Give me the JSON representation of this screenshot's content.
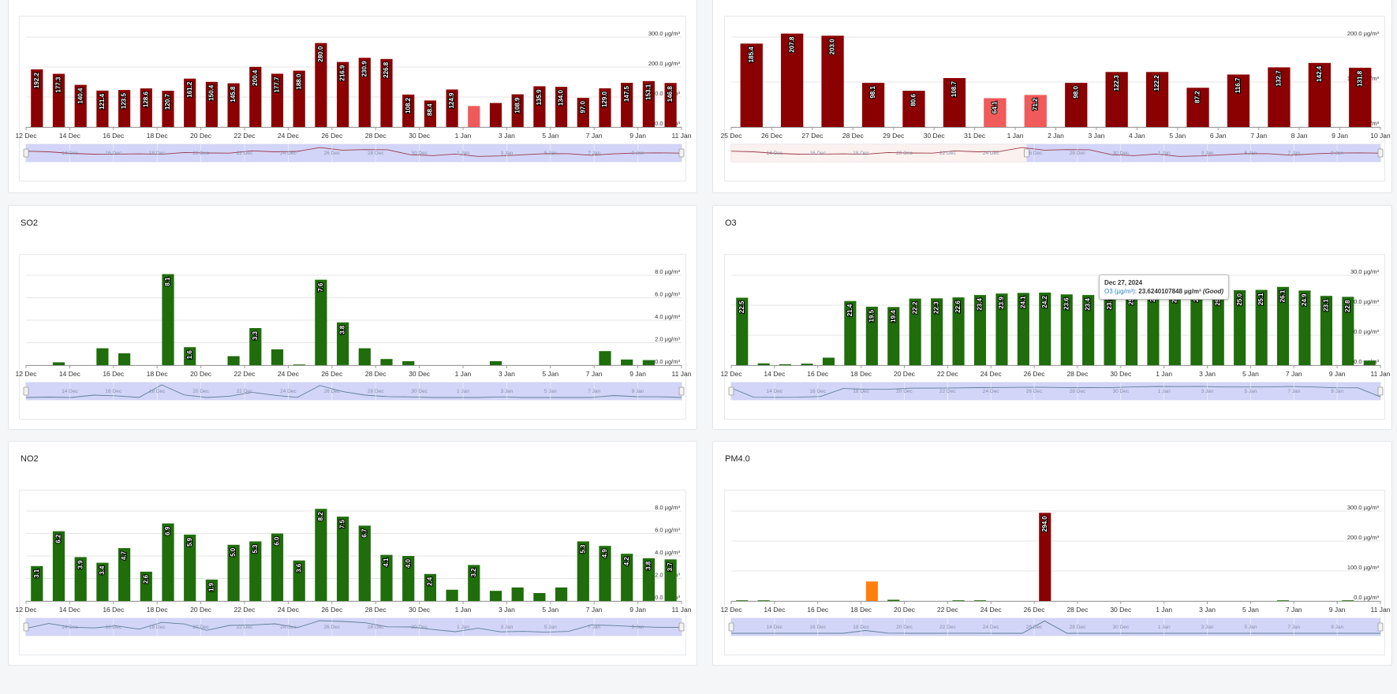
{
  "colors": {
    "dark_red": "#8b0000",
    "light_red": "#f05a5a",
    "green": "#1f6d0b",
    "orange": "#ff7f0e",
    "navigator_fill": "#cdd0f7",
    "navigator_mask": "#fbefec"
  },
  "panels": [
    {
      "id": "pm10",
      "title": "",
      "unit": "µg/m³",
      "y_ticks": [
        "300.0 µg/m³",
        "200.0 µg/m³",
        "100.0 µg/m³",
        "0.0 µg/m³"
      ],
      "ymax": 300,
      "x_labels": [
        "12 Dec",
        "14 Dec",
        "16 Dec",
        "18 Dec",
        "20 Dec",
        "22 Dec",
        "24 Dec",
        "26 Dec",
        "28 Dec",
        "30 Dec",
        "1 Jan",
        "3 Jan",
        "5 Jan",
        "7 Jan",
        "9 Jan",
        "11 Jan"
      ],
      "nav_labels": [
        "14 Dec",
        "16 Dec",
        "18 Dec",
        "20 Dec",
        "22 Dec",
        "24 Dec",
        "26 Dec",
        "28 Dec",
        "30 Dec",
        "1 Jan",
        "3 Jan",
        "5 Jan",
        "7 Jan",
        "9 Jan"
      ]
    },
    {
      "id": "pm25",
      "title": "",
      "unit": "µg/m³",
      "y_ticks": [
        "200.0 µg/m³",
        "100.0 µg/m³",
        "0.0 µg/m³"
      ],
      "ymax": 200,
      "x_labels": [
        "25 Dec",
        "26 Dec",
        "27 Dec",
        "28 Dec",
        "29 Dec",
        "30 Dec",
        "31 Dec",
        "1 Jan",
        "2 Jan",
        "3 Jan",
        "4 Jan",
        "5 Jan",
        "6 Jan",
        "7 Jan",
        "8 Jan",
        "9 Jan",
        "10 Jan"
      ],
      "nav_labels": [
        "14 Dec",
        "16 Dec",
        "18 Dec",
        "20 Dec",
        "22 Dec",
        "24 Dec",
        "26 Dec",
        "28 Dec",
        "30 Dec",
        "1 Jan",
        "3 Jan",
        "5 Jan",
        "7 Jan",
        "9 Jan"
      ]
    },
    {
      "id": "so2",
      "title": "SO2",
      "unit": "µg/m³",
      "y_ticks": [
        "8.0 µg/m³",
        "6.0 µg/m³",
        "4.0 µg/m³",
        "2.0 µg/m³",
        "0.0 µg/m³"
      ],
      "ymax": 8,
      "x_labels": [
        "12 Dec",
        "14 Dec",
        "16 Dec",
        "18 Dec",
        "20 Dec",
        "22 Dec",
        "24 Dec",
        "26 Dec",
        "28 Dec",
        "30 Dec",
        "1 Jan",
        "3 Jan",
        "5 Jan",
        "7 Jan",
        "9 Jan",
        "11 Jan"
      ],
      "nav_labels": [
        "14 Dec",
        "16 Dec",
        "18 Dec",
        "20 Dec",
        "22 Dec",
        "24 Dec",
        "26 Dec",
        "28 Dec",
        "30 Dec",
        "1 Jan",
        "3 Jan",
        "5 Jan",
        "7 Jan",
        "9 Jan"
      ]
    },
    {
      "id": "o3",
      "title": "O3",
      "unit": "µg/m³",
      "y_ticks": [
        "30.0 µg/m³",
        "20.0 µg/m³",
        "10.0 µg/m³",
        "0.0 µg/m³"
      ],
      "ymax": 30,
      "x_labels": [
        "12 Dec",
        "14 Dec",
        "16 Dec",
        "18 Dec",
        "20 Dec",
        "22 Dec",
        "24 Dec",
        "26 Dec",
        "28 Dec",
        "30 Dec",
        "1 Jan",
        "3 Jan",
        "5 Jan",
        "7 Jan",
        "9 Jan",
        "11 Jan"
      ],
      "nav_labels": [
        "14 Dec",
        "16 Dec",
        "18 Dec",
        "20 Dec",
        "22 Dec",
        "24 Dec",
        "26 Dec",
        "28 Dec",
        "30 Dec",
        "1 Jan",
        "3 Jan",
        "5 Jan",
        "7 Jan",
        "9 Jan"
      ]
    },
    {
      "id": "no2",
      "title": "NO2",
      "unit": "µg/m³",
      "y_ticks": [
        "8.0 µg/m³",
        "6.0 µg/m³",
        "4.0 µg/m³",
        "2.0 µg/m³",
        "0.0 µg/m³"
      ],
      "ymax": 8,
      "x_labels": [
        "12 Dec",
        "14 Dec",
        "16 Dec",
        "18 Dec",
        "20 Dec",
        "22 Dec",
        "24 Dec",
        "26 Dec",
        "28 Dec",
        "30 Dec",
        "1 Jan",
        "3 Jan",
        "5 Jan",
        "7 Jan",
        "9 Jan",
        "11 Jan"
      ],
      "nav_labels": [
        "14 Dec",
        "16 Dec",
        "18 Dec",
        "20 Dec",
        "22 Dec",
        "24 Dec",
        "26 Dec",
        "28 Dec",
        "30 Dec",
        "1 Jan",
        "3 Jan",
        "5 Jan",
        "7 Jan",
        "9 Jan"
      ]
    },
    {
      "id": "pm40",
      "title": "PM4.0",
      "unit": "µg/m³",
      "y_ticks": [
        "300.0 µg/m³",
        "200.0 µg/m³",
        "100.0 µg/m³",
        "0.0 µg/m³"
      ],
      "ymax": 300,
      "x_labels": [
        "12 Dec",
        "14 Dec",
        "16 Dec",
        "18 Dec",
        "20 Dec",
        "22 Dec",
        "24 Dec",
        "26 Dec",
        "28 Dec",
        "30 Dec",
        "1 Jan",
        "3 Jan",
        "5 Jan",
        "7 Jan",
        "9 Jan",
        "11 Jan"
      ],
      "nav_labels": [
        "14 Dec",
        "16 Dec",
        "18 Dec",
        "20 Dec",
        "22 Dec",
        "24 Dec",
        "26 Dec",
        "28 Dec",
        "30 Dec",
        "1 Jan",
        "3 Jan",
        "5 Jan",
        "7 Jan",
        "9 Jan"
      ]
    }
  ],
  "tooltip": {
    "date": "Dec 27, 2024",
    "series": "O3 (µg/m³)",
    "value": "23.6240107848 µg/m³",
    "status": "(Good)"
  },
  "chart_data": [
    {
      "type": "bar",
      "x_start": "2024-12-12",
      "ylim": [
        0,
        300
      ],
      "values": [
        192.2,
        177.3,
        140.4,
        121.4,
        123.5,
        128.6,
        120.7,
        161.2,
        150.4,
        145.8,
        200.4,
        177.7,
        188.0,
        280.0,
        216.9,
        230.9,
        226.8,
        108.2,
        88.4,
        124.9,
        70,
        80,
        108.9,
        135.9,
        134.0,
        97.0,
        129.0,
        147.5,
        153.1,
        146.8
      ],
      "labels": [
        "192.2",
        "177.3",
        "140.4",
        "121.4",
        "123.5",
        "128.6",
        "120.7",
        "161.2",
        "150.4",
        "145.8",
        "200.4",
        "177.7",
        "188.0",
        "280.0",
        "216.9",
        "230.9",
        "226.8",
        "108.2",
        "88.4",
        "124.9",
        "",
        "",
        "108.9",
        "135.9",
        "134.0",
        "97.0",
        "129.0",
        "147.5",
        "153.1",
        "146.8"
      ],
      "colors": [
        "dark_red",
        "dark_red",
        "dark_red",
        "dark_red",
        "dark_red",
        "dark_red",
        "dark_red",
        "dark_red",
        "dark_red",
        "dark_red",
        "dark_red",
        "dark_red",
        "dark_red",
        "dark_red",
        "dark_red",
        "dark_red",
        "dark_red",
        "dark_red",
        "dark_red",
        "dark_red",
        "light_red",
        "dark_red",
        "dark_red",
        "dark_red",
        "dark_red",
        "dark_red",
        "dark_red",
        "dark_red",
        "dark_red",
        "dark_red"
      ]
    },
    {
      "type": "bar",
      "x_start": "2024-12-26",
      "ylim": [
        0,
        200
      ],
      "values": [
        185.4,
        207.8,
        203.0,
        98.1,
        80.6,
        108.7,
        64.1,
        71.2,
        98.0,
        122.3,
        122.2,
        87.2,
        116.7,
        132.7,
        142.4,
        131.8
      ],
      "labels": [
        "185.4",
        "207.8",
        "203.0",
        "98.1",
        "80.6",
        "108.7",
        "64.1",
        "71.2",
        "98.0",
        "122.3",
        "122.2",
        "87.2",
        "116.7",
        "132.7",
        "142.4",
        "131.8"
      ],
      "colors": [
        "dark_red",
        "dark_red",
        "dark_red",
        "dark_red",
        "dark_red",
        "dark_red",
        "light_red",
        "light_red",
        "dark_red",
        "dark_red",
        "dark_red",
        "dark_red",
        "dark_red",
        "dark_red",
        "dark_red",
        "dark_red"
      ]
    },
    {
      "type": "bar",
      "x_start": "2024-12-12",
      "ylim": [
        0,
        8
      ],
      "values": [
        0,
        0.25,
        0,
        1.5,
        1.05,
        0,
        8.1,
        1.6,
        0,
        0.8,
        3.3,
        1.4,
        0.05,
        7.6,
        3.8,
        1.5,
        0.55,
        0.35,
        0,
        0,
        0,
        0.35,
        0,
        0,
        0,
        0,
        1.25,
        0.5,
        0.45,
        0
      ],
      "labels": [
        "",
        "",
        "",
        "",
        "",
        "",
        "8.1",
        "1.6",
        "",
        "",
        "3.3",
        "",
        "",
        "7.6",
        "3.8",
        "",
        "",
        "",
        "",
        "",
        "",
        "",
        "",
        "",
        "",
        "",
        "",
        "",
        "",
        ""
      ],
      "colors": [
        "green",
        "green",
        "green",
        "green",
        "green",
        "green",
        "green",
        "green",
        "green",
        "green",
        "green",
        "green",
        "green",
        "green",
        "green",
        "green",
        "green",
        "green",
        "green",
        "green",
        "green",
        "green",
        "green",
        "green",
        "green",
        "green",
        "green",
        "green",
        "green",
        "green"
      ]
    },
    {
      "type": "bar",
      "x_start": "2024-12-12",
      "ylim": [
        0,
        30
      ],
      "values": [
        22.5,
        0.6,
        0.3,
        0.5,
        2.5,
        21.4,
        19.5,
        19.4,
        22.2,
        22.3,
        22.6,
        23.4,
        23.9,
        24.1,
        24.2,
        23.6,
        23.4,
        23.7,
        25.2,
        26.2,
        25.9,
        26.2,
        25.0,
        25.0,
        25.1,
        26.1,
        24.9,
        23.1,
        22.8,
        1.5
      ],
      "labels": [
        "22.5",
        "",
        "",
        "",
        "",
        "21.4",
        "19.5",
        "19.4",
        "22.2",
        "22.3",
        "22.6",
        "23.4",
        "23.9",
        "24.1",
        "24.2",
        "23.6",
        "23.4",
        "23.7",
        "25.2",
        "26.2",
        "25.9",
        "26.2",
        "25.0",
        "25.0",
        "25.1",
        "26.1",
        "24.9",
        "23.1",
        "22.8",
        ""
      ],
      "colors": [
        "green",
        "green",
        "green",
        "green",
        "green",
        "green",
        "green",
        "green",
        "green",
        "green",
        "green",
        "green",
        "green",
        "green",
        "green",
        "green",
        "green",
        "green",
        "green",
        "green",
        "green",
        "green",
        "green",
        "green",
        "green",
        "green",
        "green",
        "green",
        "green",
        "green"
      ]
    },
    {
      "type": "bar",
      "x_start": "2024-12-12",
      "ylim": [
        0,
        8
      ],
      "values": [
        3.1,
        6.2,
        3.9,
        3.4,
        4.7,
        2.6,
        6.9,
        5.9,
        1.9,
        5.0,
        5.3,
        6.0,
        3.6,
        8.2,
        7.5,
        6.7,
        4.1,
        4.0,
        2.4,
        1.0,
        3.2,
        0.9,
        1.2,
        0.7,
        1.2,
        5.3,
        4.9,
        4.2,
        3.8,
        3.7
      ],
      "labels": [
        "3.1",
        "6.2",
        "3.9",
        "3.4",
        "4.7",
        "2.6",
        "6.9",
        "5.9",
        "1.9",
        "5.0",
        "5.3",
        "6.0",
        "3.6",
        "8.2",
        "7.5",
        "6.7",
        "4.1",
        "4.0",
        "2.4",
        "",
        "3.2",
        "",
        "",
        "",
        "",
        "5.3",
        "4.9",
        "4.2",
        "3.8",
        "3.7"
      ],
      "colors": [
        "green",
        "green",
        "green",
        "green",
        "green",
        "green",
        "green",
        "green",
        "green",
        "green",
        "green",
        "green",
        "green",
        "green",
        "green",
        "green",
        "green",
        "green",
        "green",
        "green",
        "green",
        "green",
        "green",
        "green",
        "green",
        "green",
        "green",
        "green",
        "green",
        "green"
      ]
    },
    {
      "type": "bar",
      "x_start": "2024-12-12",
      "ylim": [
        0,
        300
      ],
      "values": [
        0.5,
        0.5,
        0,
        0,
        0,
        0,
        65,
        4,
        0,
        0,
        1,
        1.5,
        0,
        0,
        294.0,
        0,
        0,
        0,
        0,
        0,
        0,
        0,
        0,
        0,
        0,
        0.5,
        0,
        0,
        0.5,
        0
      ],
      "labels": [
        "",
        "",
        "",
        "",
        "",
        "",
        "",
        "",
        "",
        "",
        "",
        "",
        "",
        "",
        "294.0",
        "",
        "",
        "",
        "",
        "",
        "",
        "",
        "",
        "",
        "",
        "",
        "",
        "",
        "",
        ""
      ],
      "colors": [
        "green",
        "green",
        "green",
        "green",
        "green",
        "green",
        "orange",
        "green",
        "green",
        "green",
        "green",
        "green",
        "green",
        "green",
        "dark_red",
        "green",
        "green",
        "green",
        "green",
        "green",
        "green",
        "green",
        "green",
        "green",
        "green",
        "green",
        "green",
        "green",
        "green",
        "green"
      ]
    }
  ]
}
